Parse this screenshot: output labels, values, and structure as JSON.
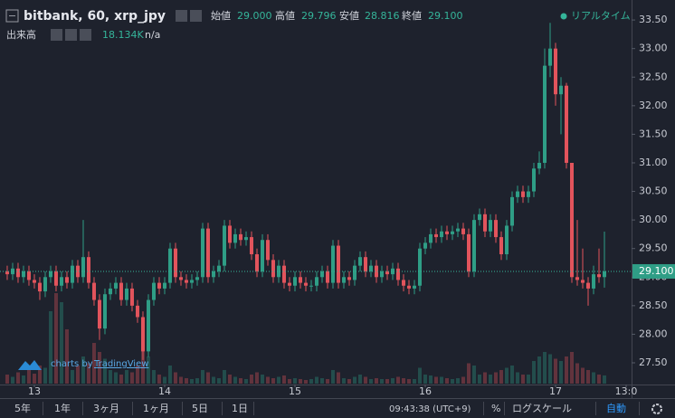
{
  "chart_data": {
    "type": "candlestick",
    "open": [
      29.1,
      29.05,
      29.15,
      29.0,
      29.1,
      28.95,
      28.9,
      28.75,
      29.0,
      29.1,
      28.85,
      29.0,
      28.9,
      29.2,
      29.0,
      29.35,
      28.9,
      28.6,
      28.1,
      28.7,
      28.8,
      28.9,
      28.6,
      28.8,
      28.5,
      28.3,
      27.7,
      28.6,
      28.9,
      28.8,
      28.9,
      29.5,
      29.0,
      28.95,
      28.9,
      28.95,
      29.0,
      29.85,
      29.0,
      29.1,
      29.2,
      29.9,
      29.6,
      29.75,
      29.65,
      29.7,
      29.4,
      29.1,
      29.65,
      29.3,
      29.0,
      29.2,
      28.9,
      28.85,
      29.0,
      28.9,
      28.85,
      28.85,
      29.0,
      29.1,
      28.9,
      29.55,
      28.9,
      29.0,
      28.95,
      29.2,
      29.35,
      29.1,
      29.2,
      29.0,
      29.1,
      29.05,
      29.15,
      28.95,
      28.85,
      28.8,
      28.85,
      29.5,
      29.6,
      29.75,
      29.7,
      29.8,
      29.75,
      29.8,
      29.85,
      29.75,
      29.1,
      30.0,
      30.1,
      29.8,
      30.0,
      29.7,
      29.4,
      29.9,
      30.4,
      30.5,
      30.4,
      30.5,
      30.9,
      31.0,
      32.7,
      33.0,
      32.2,
      32.35,
      31.0,
      29.0,
      28.95,
      28.9,
      28.8,
      29.05,
      29.0
    ],
    "high": [
      29.2,
      29.25,
      29.25,
      29.2,
      29.2,
      29.05,
      29.0,
      29.1,
      29.2,
      29.2,
      29.1,
      29.1,
      29.3,
      29.3,
      30.0,
      29.45,
      29.0,
      28.7,
      28.8,
      28.9,
      29.0,
      29.0,
      28.9,
      28.9,
      28.6,
      28.4,
      28.7,
      29.0,
      29.0,
      29.0,
      29.6,
      29.6,
      29.1,
      29.05,
      29.05,
      29.1,
      29.95,
      29.95,
      29.2,
      29.3,
      30.0,
      30.0,
      29.85,
      29.85,
      29.8,
      29.8,
      29.5,
      29.75,
      29.75,
      29.4,
      29.3,
      29.3,
      29.0,
      29.1,
      29.1,
      29.0,
      28.95,
      29.1,
      29.2,
      29.2,
      29.65,
      29.65,
      29.1,
      29.1,
      29.3,
      29.45,
      29.45,
      29.3,
      29.3,
      29.2,
      29.2,
      29.25,
      29.25,
      29.05,
      28.95,
      28.95,
      29.6,
      29.7,
      29.85,
      29.85,
      29.9,
      29.9,
      29.9,
      29.95,
      29.95,
      29.85,
      30.1,
      30.2,
      30.2,
      30.1,
      30.1,
      29.8,
      30.0,
      30.5,
      30.6,
      30.6,
      30.6,
      31.0,
      31.2,
      33.0,
      33.45,
      33.1,
      32.5,
      32.4,
      31.0,
      30.0,
      29.5,
      29.0,
      29.2,
      29.5,
      29.796
    ],
    "low": [
      28.95,
      28.95,
      28.9,
      28.9,
      28.85,
      28.8,
      28.6,
      28.65,
      28.9,
      28.75,
      28.75,
      28.8,
      28.8,
      28.9,
      28.9,
      28.8,
      28.5,
      27.9,
      28.0,
      28.6,
      28.7,
      28.5,
      28.5,
      28.4,
      28.2,
      27.55,
      27.6,
      28.5,
      28.7,
      28.7,
      28.8,
      28.9,
      28.85,
      28.8,
      28.8,
      28.85,
      28.9,
      28.9,
      28.9,
      29.0,
      29.1,
      29.5,
      29.5,
      29.55,
      29.55,
      29.3,
      29.0,
      29.0,
      29.2,
      28.9,
      28.9,
      28.8,
      28.75,
      28.75,
      28.8,
      28.75,
      28.75,
      28.75,
      28.9,
      28.8,
      28.8,
      28.8,
      28.8,
      28.85,
      28.85,
      29.1,
      29.0,
      29.0,
      28.9,
      28.9,
      28.95,
      28.95,
      28.85,
      28.75,
      28.7,
      28.7,
      28.75,
      29.4,
      29.5,
      29.6,
      29.6,
      29.65,
      29.65,
      29.7,
      29.65,
      29.0,
      29.0,
      29.9,
      29.7,
      29.7,
      29.6,
      29.3,
      29.3,
      29.8,
      30.3,
      30.3,
      30.3,
      30.4,
      30.8,
      30.9,
      32.5,
      32.0,
      31.5,
      30.9,
      28.9,
      28.85,
      28.8,
      28.5,
      28.7,
      28.9,
      28.816
    ],
    "close": [
      29.05,
      29.15,
      29.0,
      29.1,
      28.95,
      28.9,
      28.75,
      29.0,
      29.1,
      28.85,
      29.0,
      28.9,
      29.2,
      29.0,
      29.35,
      28.9,
      28.6,
      28.1,
      28.7,
      28.8,
      28.9,
      28.6,
      28.8,
      28.5,
      28.3,
      27.7,
      28.6,
      28.9,
      28.8,
      28.9,
      29.5,
      29.0,
      28.95,
      28.9,
      28.95,
      29.0,
      29.85,
      29.0,
      29.1,
      29.2,
      29.9,
      29.6,
      29.75,
      29.65,
      29.7,
      29.4,
      29.1,
      29.65,
      29.3,
      29.0,
      29.2,
      28.9,
      28.85,
      29.0,
      28.9,
      28.85,
      28.85,
      29.0,
      29.1,
      28.9,
      29.55,
      28.9,
      29.0,
      28.95,
      29.2,
      29.35,
      29.1,
      29.2,
      29.0,
      29.1,
      29.05,
      29.15,
      28.95,
      28.85,
      28.8,
      28.85,
      29.5,
      29.6,
      29.75,
      29.7,
      29.8,
      29.75,
      29.8,
      29.85,
      29.75,
      29.1,
      30.0,
      30.1,
      29.8,
      30.0,
      29.7,
      29.4,
      29.9,
      30.4,
      30.5,
      30.4,
      30.5,
      30.9,
      31.0,
      32.7,
      33.0,
      32.2,
      32.35,
      31.0,
      29.0,
      28.95,
      28.9,
      28.8,
      29.05,
      29.0,
      29.1
    ],
    "volume": [
      20,
      15,
      25,
      18,
      30,
      22,
      40,
      35,
      160,
      200,
      180,
      120,
      30,
      40,
      60,
      45,
      90,
      70,
      55,
      30,
      25,
      20,
      30,
      25,
      40,
      80,
      60,
      30,
      20,
      15,
      40,
      25,
      15,
      12,
      10,
      12,
      30,
      25,
      15,
      12,
      30,
      20,
      15,
      12,
      10,
      20,
      25,
      20,
      15,
      12,
      15,
      18,
      10,
      12,
      10,
      8,
      10,
      15,
      12,
      10,
      30,
      25,
      12,
      10,
      15,
      20,
      15,
      10,
      12,
      10,
      10,
      12,
      15,
      12,
      10,
      10,
      35,
      20,
      18,
      15,
      15,
      12,
      10,
      12,
      15,
      45,
      40,
      20,
      25,
      20,
      25,
      30,
      35,
      40,
      25,
      20,
      20,
      50,
      60,
      70,
      65,
      55,
      50,
      60,
      70,
      45,
      35,
      30,
      25,
      20,
      18.134
    ],
    "up_color": "#2f9e86",
    "down_color": "#e2545c",
    "ylim": [
      27.12,
      33.85
    ],
    "yticks": [
      {
        "value": 27.5,
        "label": "27.50"
      },
      {
        "value": 28.0,
        "label": "28.00"
      },
      {
        "value": 28.5,
        "label": "28.50"
      },
      {
        "value": 29.0,
        "label": "29.00"
      },
      {
        "value": 29.5,
        "label": "29.50"
      },
      {
        "value": 30.0,
        "label": "30.00"
      },
      {
        "value": 30.5,
        "label": "30.50"
      },
      {
        "value": 31.0,
        "label": "31.00"
      },
      {
        "value": 31.5,
        "label": "31.50"
      },
      {
        "value": 32.0,
        "label": "32.00"
      },
      {
        "value": 32.5,
        "label": "32.50"
      },
      {
        "value": 33.0,
        "label": "33.00"
      },
      {
        "value": 33.5,
        "label": "33.50"
      }
    ],
    "xlim": [
      -1.33,
      115
    ],
    "xticks": [
      {
        "value": 5,
        "label": "13"
      },
      {
        "value": 29,
        "label": "14"
      },
      {
        "value": 53,
        "label": "15"
      },
      {
        "value": 77,
        "label": "16"
      },
      {
        "value": 101,
        "label": "17"
      },
      {
        "value": 114,
        "label": "13:0"
      }
    ],
    "last_price_label": "29.100"
  },
  "header": {
    "title": "bitbank, 60, xrp_jpy",
    "ohlc": [
      {
        "label": "始値",
        "value": "29.000"
      },
      {
        "label": "高値",
        "value": "29.796"
      },
      {
        "label": "安値",
        "value": "28.816"
      },
      {
        "label": "終値",
        "value": "29.100"
      }
    ],
    "realtime": "リアルタイム",
    "volume_label": "出来高",
    "volume_value": "18.134K",
    "volume_extra": "n/a"
  },
  "branding": {
    "prefix": "charts by",
    "link": "TradingView"
  },
  "toolbar": {
    "ranges": [
      "5年",
      "1年",
      "3ヶ月",
      "1ヶ月",
      "5日",
      "1日"
    ],
    "time": "09:43:38 (UTC+9)",
    "percent": "%",
    "log": "ログスケール",
    "auto": "自動"
  }
}
